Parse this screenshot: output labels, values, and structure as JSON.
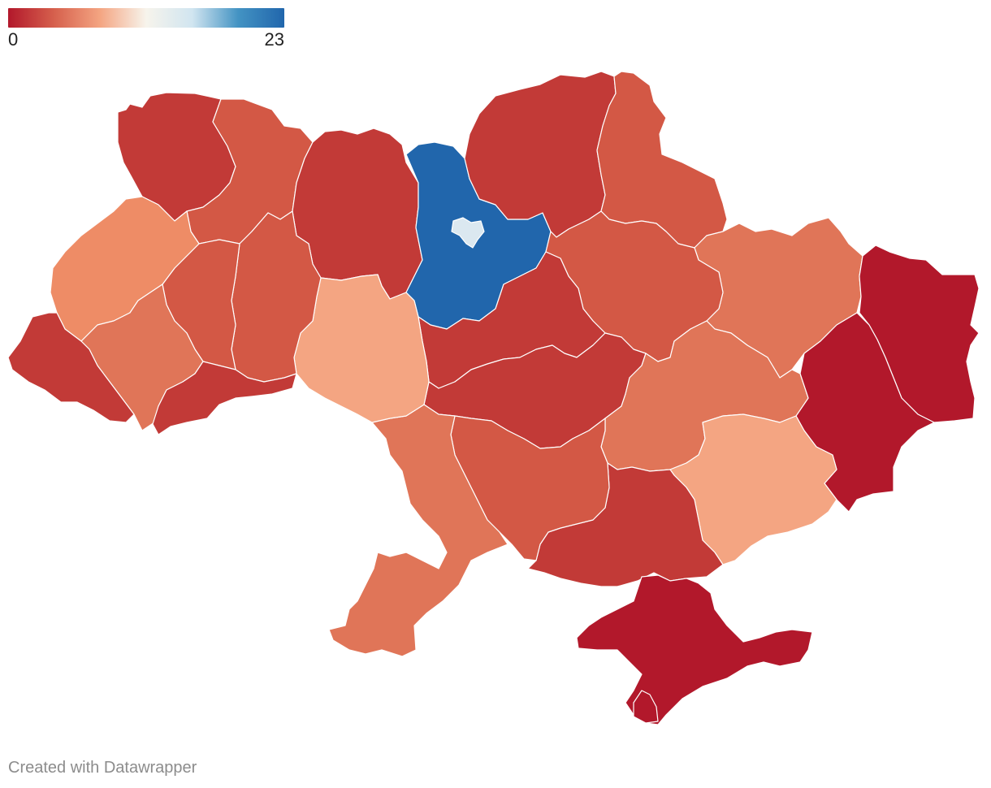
{
  "legend": {
    "min_label": "0",
    "max_label": "23",
    "scale_colors": [
      "#b2182b",
      "#d6604d",
      "#f4a582",
      "#f7f4ec",
      "#d1e5f0",
      "#4393c3",
      "#2166ac"
    ]
  },
  "credit": "Created with Datawrapper",
  "map": {
    "colors": {
      "darkest_red": "#b2182b",
      "dark_red": "#c23a37",
      "medium_red": "#d35845",
      "orange_red": "#e07558",
      "light_orange": "#ee8c66",
      "lightest_orange": "#f4a582",
      "blue": "#2166ac",
      "light_blue": "#dbe8f0"
    }
  }
}
